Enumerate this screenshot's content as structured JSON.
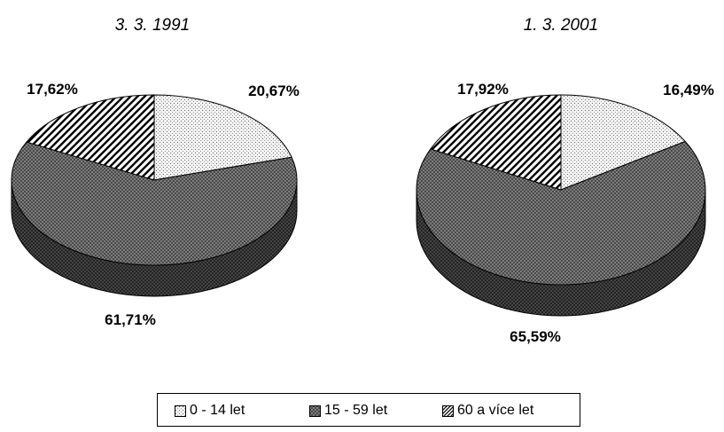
{
  "chart_data": [
    {
      "type": "pie",
      "title": "3. 3. 1991",
      "categories": [
        "0 - 14 let",
        "15 - 59 let",
        "60 a více let"
      ],
      "values": [
        20.67,
        61.71,
        17.62
      ],
      "labels": [
        "20,67%",
        "61,71%",
        "17,62%"
      ],
      "style": "3d-exploded"
    },
    {
      "type": "pie",
      "title": "1. 3. 2001",
      "categories": [
        "0 - 14 let",
        "15 - 59 let",
        "60 a více let"
      ],
      "values": [
        16.49,
        65.59,
        17.92
      ],
      "labels": [
        "16,49%",
        "65,59%",
        "17,92%"
      ],
      "style": "3d-exploded"
    }
  ],
  "legend": {
    "placement": "bottom",
    "items": [
      "0 - 14 let",
      "15 - 59 let",
      "60 a více let"
    ]
  },
  "colors": {
    "slice0_fill": "#e8e8e8",
    "slice1_fill": "#8c8c8c",
    "slice1_side": "#4a4a4a",
    "slice2_fill": "#ffffff",
    "outline": "#000000"
  }
}
